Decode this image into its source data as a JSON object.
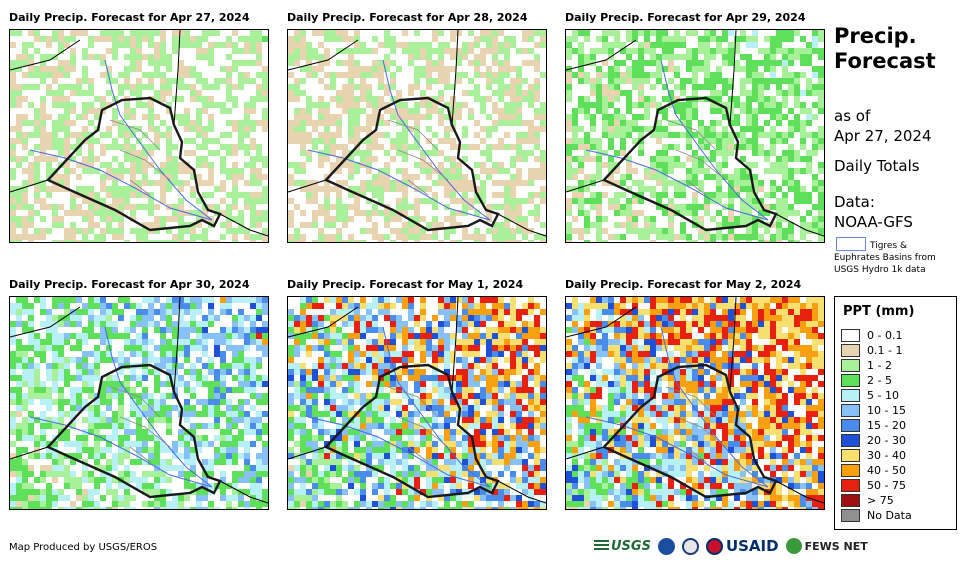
{
  "panels": [
    {
      "title": "Daily Precip. Forecast for Apr 27, 2024",
      "intensity": 0.25
    },
    {
      "title": "Daily Precip. Forecast for Apr 28, 2024",
      "intensity": 0.2
    },
    {
      "title": "Daily Precip. Forecast for Apr 29, 2024",
      "intensity": 0.4
    },
    {
      "title": "Daily Precip. Forecast for Apr 30, 2024",
      "intensity": 0.6
    },
    {
      "title": "Daily Precip. Forecast for May 1, 2024",
      "intensity": 0.85
    },
    {
      "title": "Daily Precip. Forecast for May 2, 2024",
      "intensity": 0.95
    }
  ],
  "side": {
    "title_line1": "Precip.",
    "title_line2": "Forecast",
    "as_of_label": "as of",
    "as_of_date": "Apr 27, 2024",
    "totals": "Daily Totals",
    "data_label": "Data:",
    "data_source": "NOAA-GFS",
    "basin_note": "Tigres & Euphrates Basins from USGS Hydro 1k data"
  },
  "legend": {
    "title": "PPT (mm)",
    "items": [
      {
        "label": "0 - 0.1",
        "color": "#ffffff"
      },
      {
        "label": "0.1 - 1",
        "color": "#e8d4b0"
      },
      {
        "label": "1 - 2",
        "color": "#a8f09a"
      },
      {
        "label": "2 - 5",
        "color": "#5ee05a"
      },
      {
        "label": "5 - 10",
        "color": "#b8f0f8"
      },
      {
        "label": "10 - 15",
        "color": "#88c0f8"
      },
      {
        "label": "15 - 20",
        "color": "#4a8cec"
      },
      {
        "label": "20 - 30",
        "color": "#1e50d8"
      },
      {
        "label": "30 - 40",
        "color": "#f8e070"
      },
      {
        "label": "40 - 50",
        "color": "#f8a010"
      },
      {
        "label": "50 - 75",
        "color": "#e82010"
      },
      {
        "label": "> 75",
        "color": "#a01010"
      },
      {
        "label": "No Data",
        "color": "#909090"
      }
    ]
  },
  "footer": {
    "credit": "Map Produced by USGS/EROS",
    "logo_usgs": "USGS",
    "logo_usaid": "USAID",
    "logo_fews": "FEWS NET"
  }
}
